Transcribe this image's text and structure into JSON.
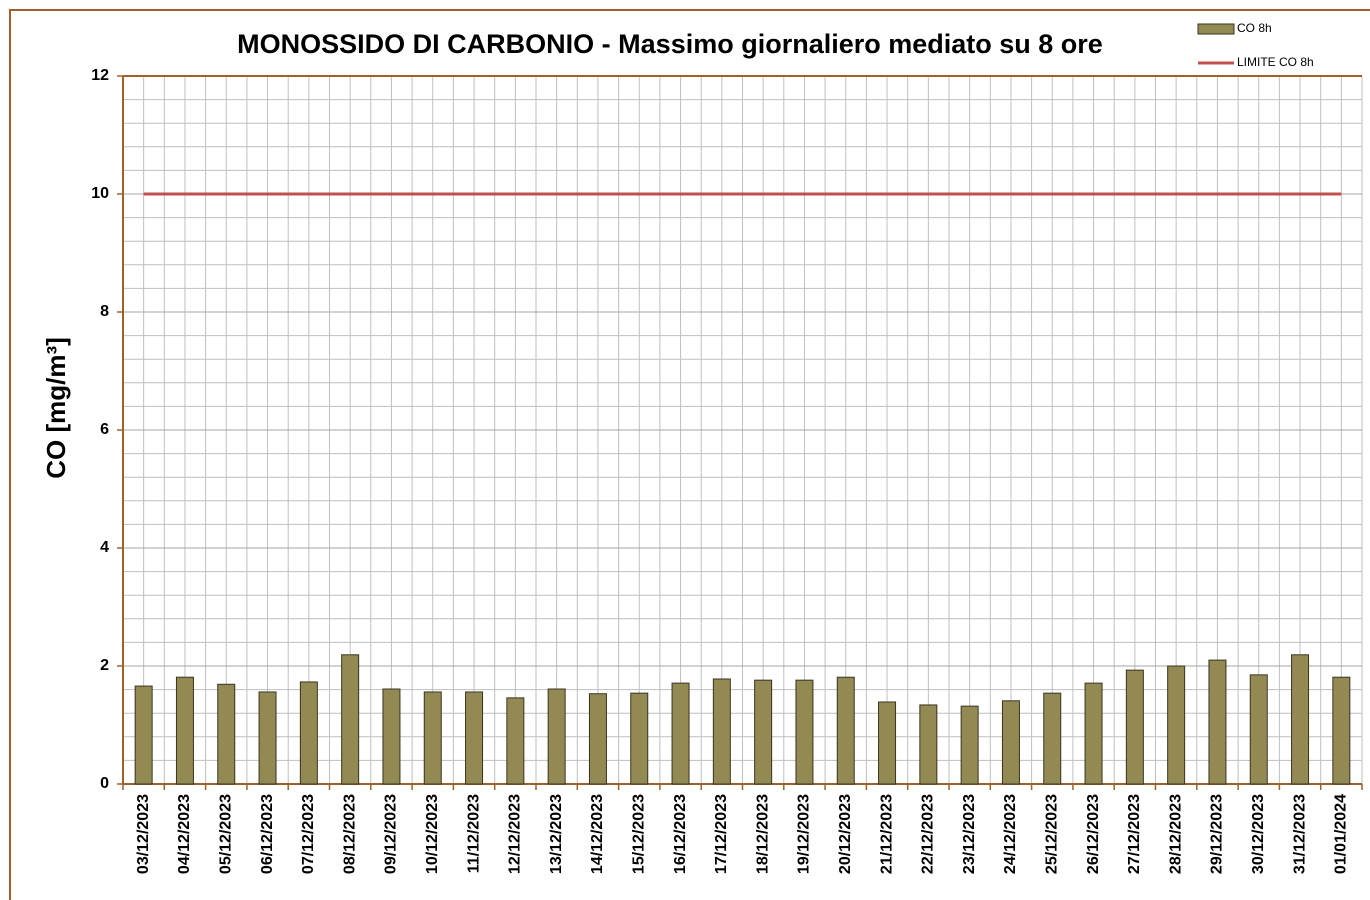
{
  "chart_data": {
    "type": "bar",
    "title": "MONOSSIDO DI CARBONIO - Massimo giornaliero mediato su 8 ore",
    "y_label": "CO [mg/m³]",
    "categories": [
      "03/12/2023",
      "04/12/2023",
      "05/12/2023",
      "06/12/2023",
      "07/12/2023",
      "08/12/2023",
      "09/12/2023",
      "10/12/2023",
      "11/12/2023",
      "12/12/2023",
      "13/12/2023",
      "14/12/2023",
      "15/12/2023",
      "16/12/2023",
      "17/12/2023",
      "18/12/2023",
      "19/12/2023",
      "20/12/2023",
      "21/12/2023",
      "22/12/2023",
      "23/12/2023",
      "24/12/2023",
      "25/12/2023",
      "26/12/2023",
      "27/12/2023",
      "28/12/2023",
      "29/12/2023",
      "30/12/2023",
      "31/12/2023",
      "01/01/2024"
    ],
    "series": [
      {
        "name": "CO 8h",
        "type": "bar",
        "color": "#938953",
        "values": [
          1.66,
          1.81,
          1.69,
          1.56,
          1.73,
          2.19,
          1.61,
          1.56,
          1.56,
          1.46,
          1.61,
          1.53,
          1.54,
          1.71,
          1.78,
          1.76,
          1.76,
          1.81,
          1.39,
          1.34,
          1.32,
          1.41,
          1.54,
          1.71,
          1.93,
          2.0,
          2.1,
          1.85,
          2.19,
          1.81
        ]
      },
      {
        "name": "LIMITE CO 8h",
        "type": "line",
        "color": "#c0504d",
        "values": [
          10,
          10,
          10,
          10,
          10,
          10,
          10,
          10,
          10,
          10,
          10,
          10,
          10,
          10,
          10,
          10,
          10,
          10,
          10,
          10,
          10,
          10,
          10,
          10,
          10,
          10,
          10,
          10,
          10,
          10
        ]
      }
    ],
    "ylim": [
      0,
      12
    ],
    "yticks": [
      0,
      2,
      4,
      6,
      8,
      10,
      12
    ],
    "yminorticks": [
      0.4,
      0.8,
      1.2,
      1.6,
      2.4,
      2.8,
      3.2,
      3.6,
      4.4,
      4.8,
      5.2,
      5.6,
      6.4,
      6.8,
      7.2,
      7.6,
      8.4,
      8.8,
      9.2,
      9.6,
      10.4,
      10.8,
      11.2,
      11.6
    ],
    "grid": true,
    "legend": "top-right"
  }
}
